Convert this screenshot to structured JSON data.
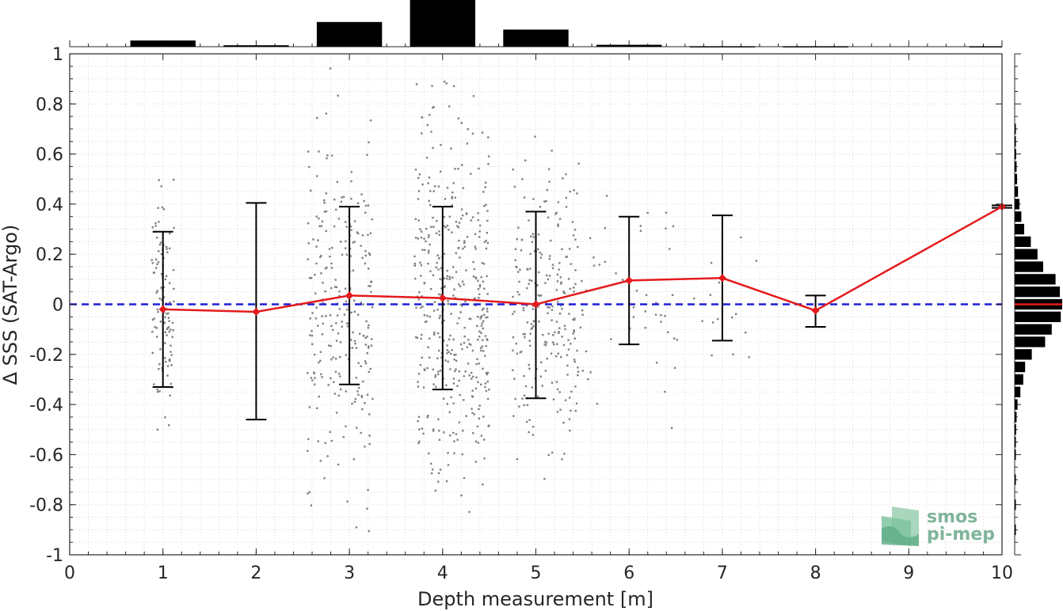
{
  "chart_data": {
    "type": "line",
    "title": "",
    "xlabel": "Depth measurement [m]",
    "ylabel": "Δ SSS (SAT-Argo)",
    "xlim": [
      0,
      10
    ],
    "ylim": [
      -1,
      1
    ],
    "xticks": [
      "0",
      "1",
      "2",
      "3",
      "4",
      "5",
      "6",
      "7",
      "8",
      "9",
      "10"
    ],
    "yticks": [
      "-1",
      "-0.8",
      "-0.6",
      "-0.4",
      "-0.2",
      "0",
      "0.2",
      "0.4",
      "0.6",
      "0.8",
      "1"
    ],
    "grid": "dotted-minor",
    "reference_line": {
      "y": 0,
      "color": "#1f1fd6",
      "style": "dashed"
    },
    "series": [
      {
        "color": "#e41a1c",
        "x": [
          1,
          2,
          3,
          4,
          5,
          6,
          7,
          8,
          10
        ],
        "y": [
          -0.02,
          -0.03,
          0.035,
          0.025,
          0.0,
          0.095,
          0.105,
          -0.025,
          0.39
        ]
      }
    ],
    "error_bars": {
      "color": "#000000",
      "x": [
        1,
        2,
        3,
        4,
        5,
        6,
        7,
        8,
        10
      ],
      "low": [
        -0.33,
        -0.46,
        -0.32,
        -0.34,
        -0.375,
        -0.16,
        -0.145,
        -0.09,
        0.385
      ],
      "high": [
        0.29,
        0.405,
        0.39,
        0.39,
        0.37,
        0.35,
        0.355,
        0.035,
        0.395
      ]
    },
    "scatter": {
      "color": "#808080",
      "groups": [
        {
          "center": 1.0,
          "spread": 0.12,
          "count": 110,
          "sd": 0.22
        },
        {
          "center": 2.9,
          "spread": 0.35,
          "count": 260,
          "sd": 0.36
        },
        {
          "center": 4.1,
          "spread": 0.4,
          "count": 420,
          "sd": 0.36
        },
        {
          "center": 5.1,
          "spread": 0.35,
          "count": 240,
          "sd": 0.3
        },
        {
          "center": 6.0,
          "spread": 0.55,
          "count": 50,
          "sd": 0.25
        },
        {
          "center": 7.0,
          "spread": 0.4,
          "count": 15,
          "sd": 0.2
        }
      ]
    },
    "top_histogram": {
      "color": "#000000",
      "bin_centers": [
        1,
        2,
        3,
        4,
        5,
        6,
        7,
        8,
        10
      ],
      "relative_heights": [
        0.13,
        0.03,
        0.52,
        1.0,
        0.36,
        0.04,
        0.01,
        0.01,
        0.01
      ]
    },
    "right_histogram": {
      "color": "#000000",
      "mean_line_color": "#e41a1c",
      "bins_y": [
        0.7,
        0.65,
        0.6,
        0.55,
        0.5,
        0.45,
        0.4,
        0.35,
        0.3,
        0.25,
        0.2,
        0.15,
        0.1,
        0.05,
        0.0,
        -0.05,
        -0.1,
        -0.15,
        -0.2,
        -0.25,
        -0.3,
        -0.35,
        -0.4,
        -0.45,
        -0.5,
        -0.55,
        -0.6,
        -0.7,
        -0.8,
        -0.9
      ],
      "relative_lengths": [
        0.02,
        0.02,
        0.03,
        0.04,
        0.05,
        0.07,
        0.1,
        0.14,
        0.2,
        0.34,
        0.48,
        0.6,
        0.86,
        0.95,
        1.0,
        0.97,
        0.78,
        0.64,
        0.36,
        0.22,
        0.18,
        0.12,
        0.06,
        0.04,
        0.03,
        0.02,
        0.02,
        0.02,
        0.02,
        0.02
      ]
    }
  },
  "logo": {
    "line1": "smos",
    "line2": "pi-mep"
  }
}
